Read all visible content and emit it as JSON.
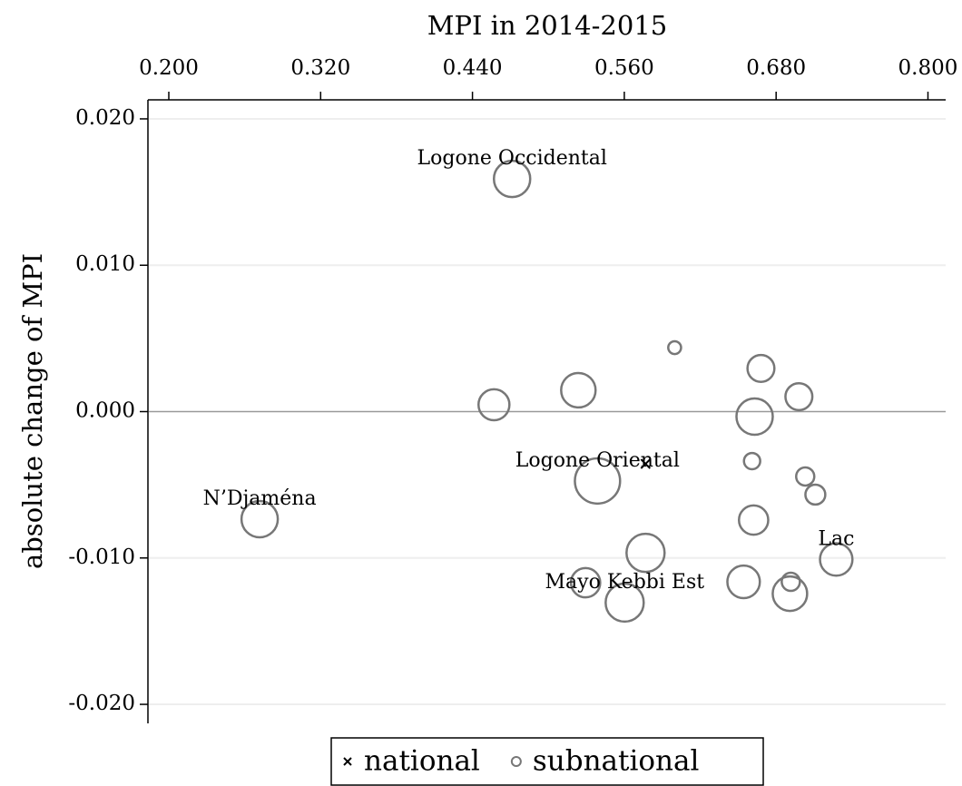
{
  "chart_data": {
    "type": "scatter",
    "title": "MPI in 2014-2015",
    "y_label": "absolute change of MPI",
    "xlim": [
      0.1835,
      0.814
    ],
    "ylim": [
      -0.0213,
      0.0213
    ],
    "xticks": [
      {
        "value": 0.2,
        "label": "0.200"
      },
      {
        "value": 0.32,
        "label": "0.320"
      },
      {
        "value": 0.44,
        "label": "0.440"
      },
      {
        "value": 0.56,
        "label": "0.560"
      },
      {
        "value": 0.68,
        "label": "0.680"
      },
      {
        "value": 0.8,
        "label": "0.800"
      }
    ],
    "yticks": [
      {
        "value": -0.02,
        "label": "-0.020"
      },
      {
        "value": -0.01,
        "label": "-0.010"
      },
      {
        "value": 0,
        "label": "0.000"
      },
      {
        "value": 0.01,
        "label": "0.010"
      },
      {
        "value": 0.02,
        "label": "0.020"
      }
    ],
    "grid": true,
    "series": [
      {
        "name": "national",
        "marker": "x",
        "color": "#000000",
        "x": [
          0.5768
        ],
        "values": [
          -0.00357
        ]
      },
      {
        "name": "subnational",
        "marker": "circle",
        "color": "#777777",
        "x": [
          0.4713,
          0.5998,
          0.668,
          0.698,
          0.5237,
          0.457,
          0.663,
          0.661,
          0.703,
          0.711,
          0.5388,
          0.2718,
          0.6622,
          0.5768,
          0.7275,
          0.6543,
          0.5603,
          0.6916,
          0.6909,
          0.5294
        ],
        "values": [
          0.0159,
          0.00437,
          0.00295,
          0.00102,
          0.00146,
          0.00047,
          -0.00034,
          -0.00338,
          -0.00443,
          -0.00567,
          -0.00474,
          -0.00735,
          -0.00741,
          -0.00965,
          -0.0101,
          -0.01163,
          -0.01305,
          -0.01163,
          -0.01244,
          -0.01169
        ],
        "sizes": [
          4.0,
          0.5,
          2.2,
          2.2,
          3.6,
          2.9,
          4.0,
          0.8,
          1.0,
          1.2,
          6.2,
          4.0,
          2.6,
          4.4,
          3.2,
          3.2,
          4.4,
          1.0,
          3.6,
          2.6
        ]
      }
    ],
    "annotations": [
      {
        "text": "Logone Occidental",
        "series": 1,
        "index": 0
      },
      {
        "text": "Logone Oriental",
        "series": 1,
        "index": 10
      },
      {
        "text": "N’Djaména",
        "series": 1,
        "index": 11
      },
      {
        "text": "Lac",
        "series": 1,
        "index": 14
      },
      {
        "text": "Mayo Kebbi Est",
        "series": 1,
        "index": 16
      }
    ],
    "legend": "bottom"
  }
}
